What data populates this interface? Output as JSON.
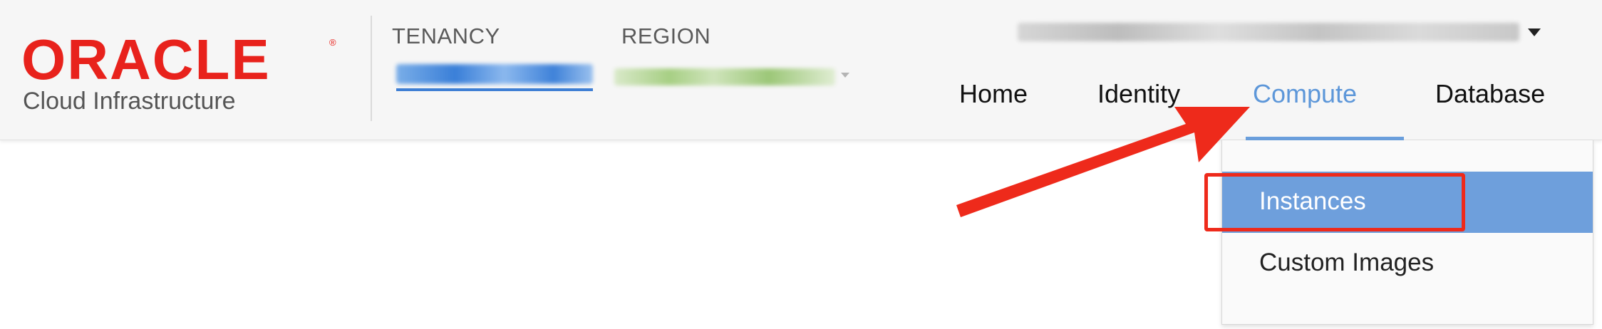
{
  "brand": {
    "logo_word": "ORACLE",
    "logo_registered": "®",
    "logo_subtitle": "Cloud Infrastructure",
    "logo_color": "#e8221c"
  },
  "tenancy": {
    "label": "TENANCY",
    "value_state": "blurred"
  },
  "region": {
    "label": "REGION",
    "value_state": "blurred",
    "caret_icon": "chevron-down-icon"
  },
  "user_menu": {
    "value_state": "blurred",
    "caret_icon": "caret-down-icon"
  },
  "nav": {
    "tabs": [
      {
        "label": "Home",
        "active": false
      },
      {
        "label": "Identity",
        "active": false
      },
      {
        "label": "Compute",
        "active": true
      },
      {
        "label": "Database",
        "active": false
      }
    ],
    "active_color": "#5d97d9"
  },
  "compute_menu": {
    "items": [
      {
        "label": "Instances",
        "selected": true
      },
      {
        "label": "Custom Images",
        "selected": false
      }
    ],
    "selected_bg": "#6e9fdc"
  },
  "annotation": {
    "color": "#ee2a1b",
    "target": "Instances"
  }
}
